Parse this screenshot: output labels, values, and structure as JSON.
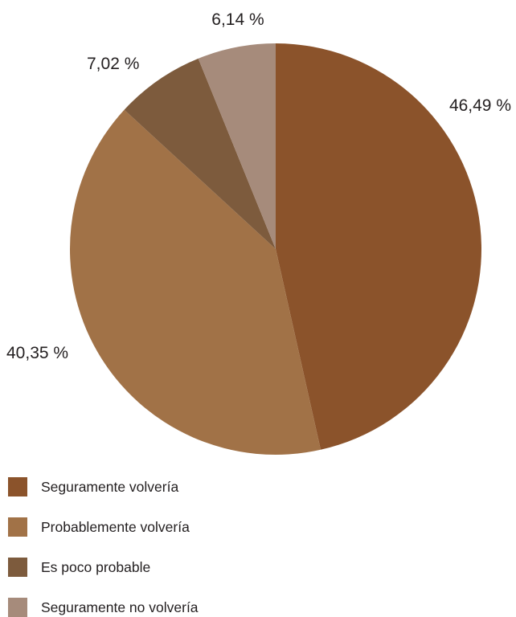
{
  "chart_data": {
    "type": "pie",
    "title": "",
    "legend_position": "bottom-left",
    "categories": [
      "Seguramente volvería",
      "Probablemente volvería",
      "Es poco probable",
      "Seguramente no volvería"
    ],
    "values": [
      46.49,
      40.35,
      7.02,
      6.14
    ],
    "data_labels": [
      "46,49 %",
      "40,35 %",
      "7,02 %",
      "6,14 %"
    ],
    "colors": [
      "#8b532b",
      "#a17247",
      "#7d5b3d",
      "#a68b7b"
    ]
  }
}
